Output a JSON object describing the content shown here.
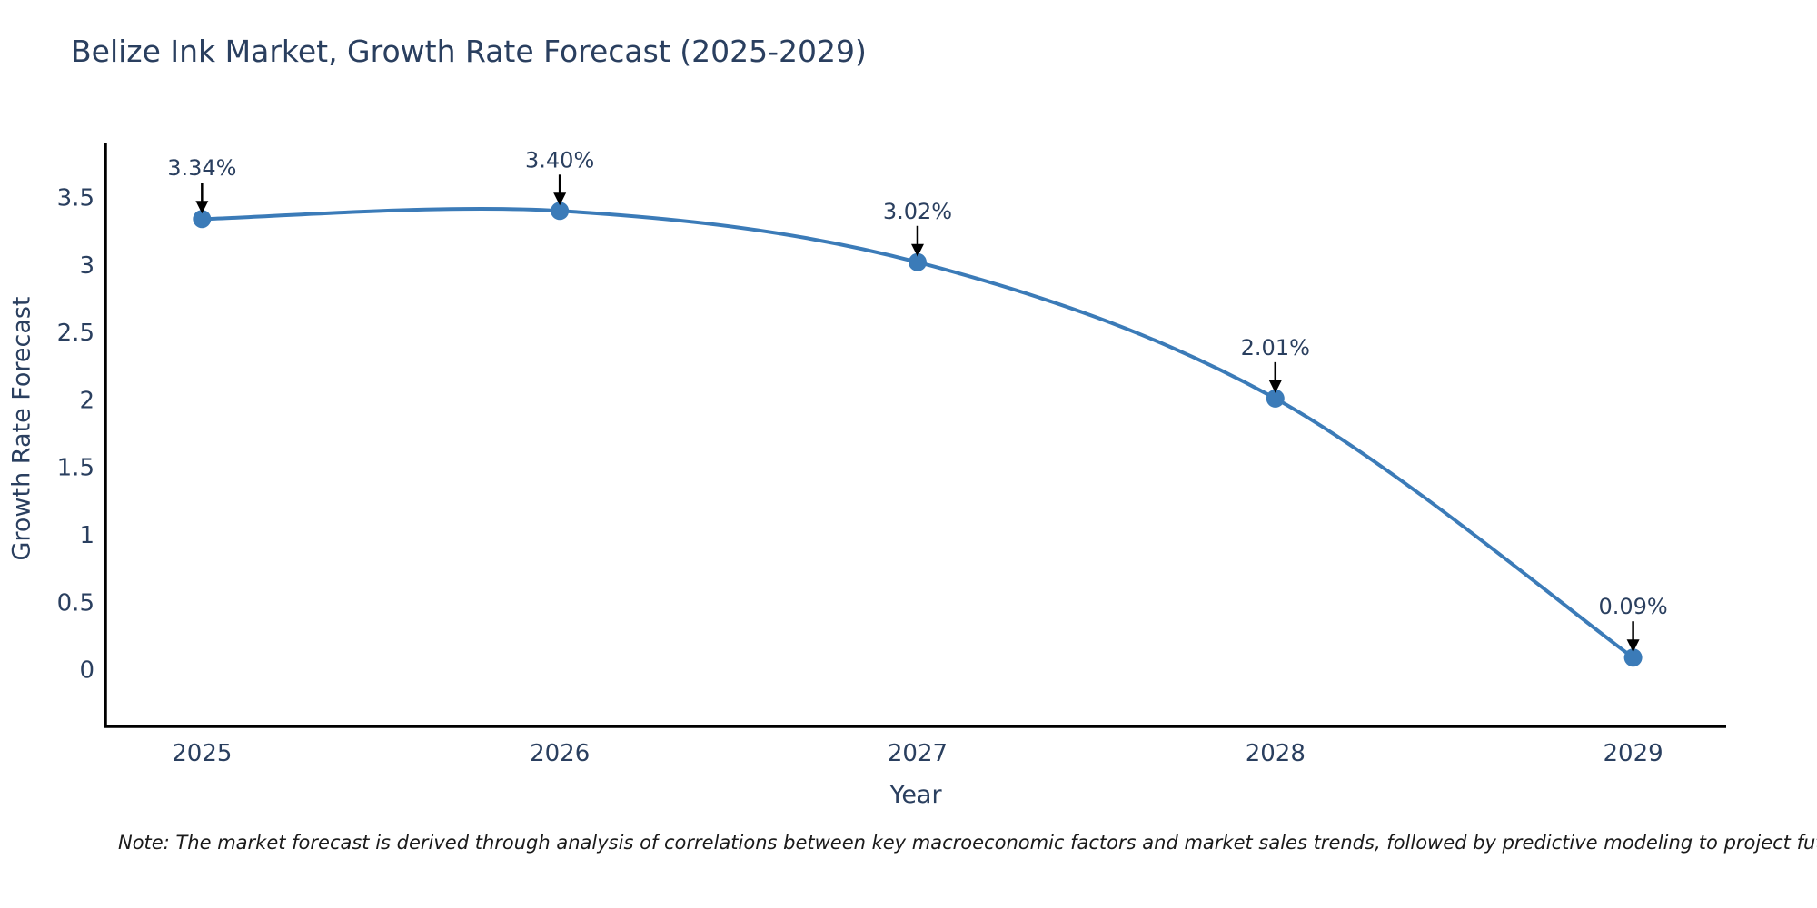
{
  "chart_data": {
    "type": "line",
    "title": "Belize Ink Market, Growth Rate Forecast (2025-2029)",
    "xlabel": "Year",
    "ylabel": "Growth Rate Forecast",
    "x": [
      2025,
      2026,
      2027,
      2028,
      2029
    ],
    "series": [
      {
        "name": "Growth Rate Forecast",
        "values": [
          3.34,
          3.4,
          3.02,
          2.01,
          0.09
        ]
      }
    ],
    "point_labels": [
      "3.34%",
      "3.40%",
      "3.02%",
      "2.01%",
      "0.09%"
    ],
    "x_ticks": [
      {
        "v": 2025,
        "label": "2025"
      },
      {
        "v": 2026,
        "label": "2026"
      },
      {
        "v": 2027,
        "label": "2027"
      },
      {
        "v": 2028,
        "label": "2028"
      },
      {
        "v": 2029,
        "label": "2029"
      }
    ],
    "y_ticks": [
      {
        "v": 0,
        "label": "0"
      },
      {
        "v": 0.5,
        "label": "0.5"
      },
      {
        "v": 1,
        "label": "1"
      },
      {
        "v": 1.5,
        "label": "1.5"
      },
      {
        "v": 2,
        "label": "2"
      },
      {
        "v": 2.5,
        "label": "2.5"
      },
      {
        "v": 3,
        "label": "3"
      },
      {
        "v": 3.5,
        "label": "3.5"
      }
    ],
    "x_range": [
      2024.73,
      2029.26
    ],
    "y_range": [
      -0.42,
      3.9
    ],
    "grid": false,
    "legend_position": "none",
    "line_shape": "spline",
    "colors": {
      "line": "#3b7bb8",
      "marker": "#3b7bb8",
      "axis": "#000000",
      "text": "#2a3f5f",
      "annotation_arrow": "#000000"
    },
    "note": "Note: The market forecast is derived through analysis of correlations between key macroeconomic factors and market sales trends, followed by predictive modeling to project future sales"
  }
}
